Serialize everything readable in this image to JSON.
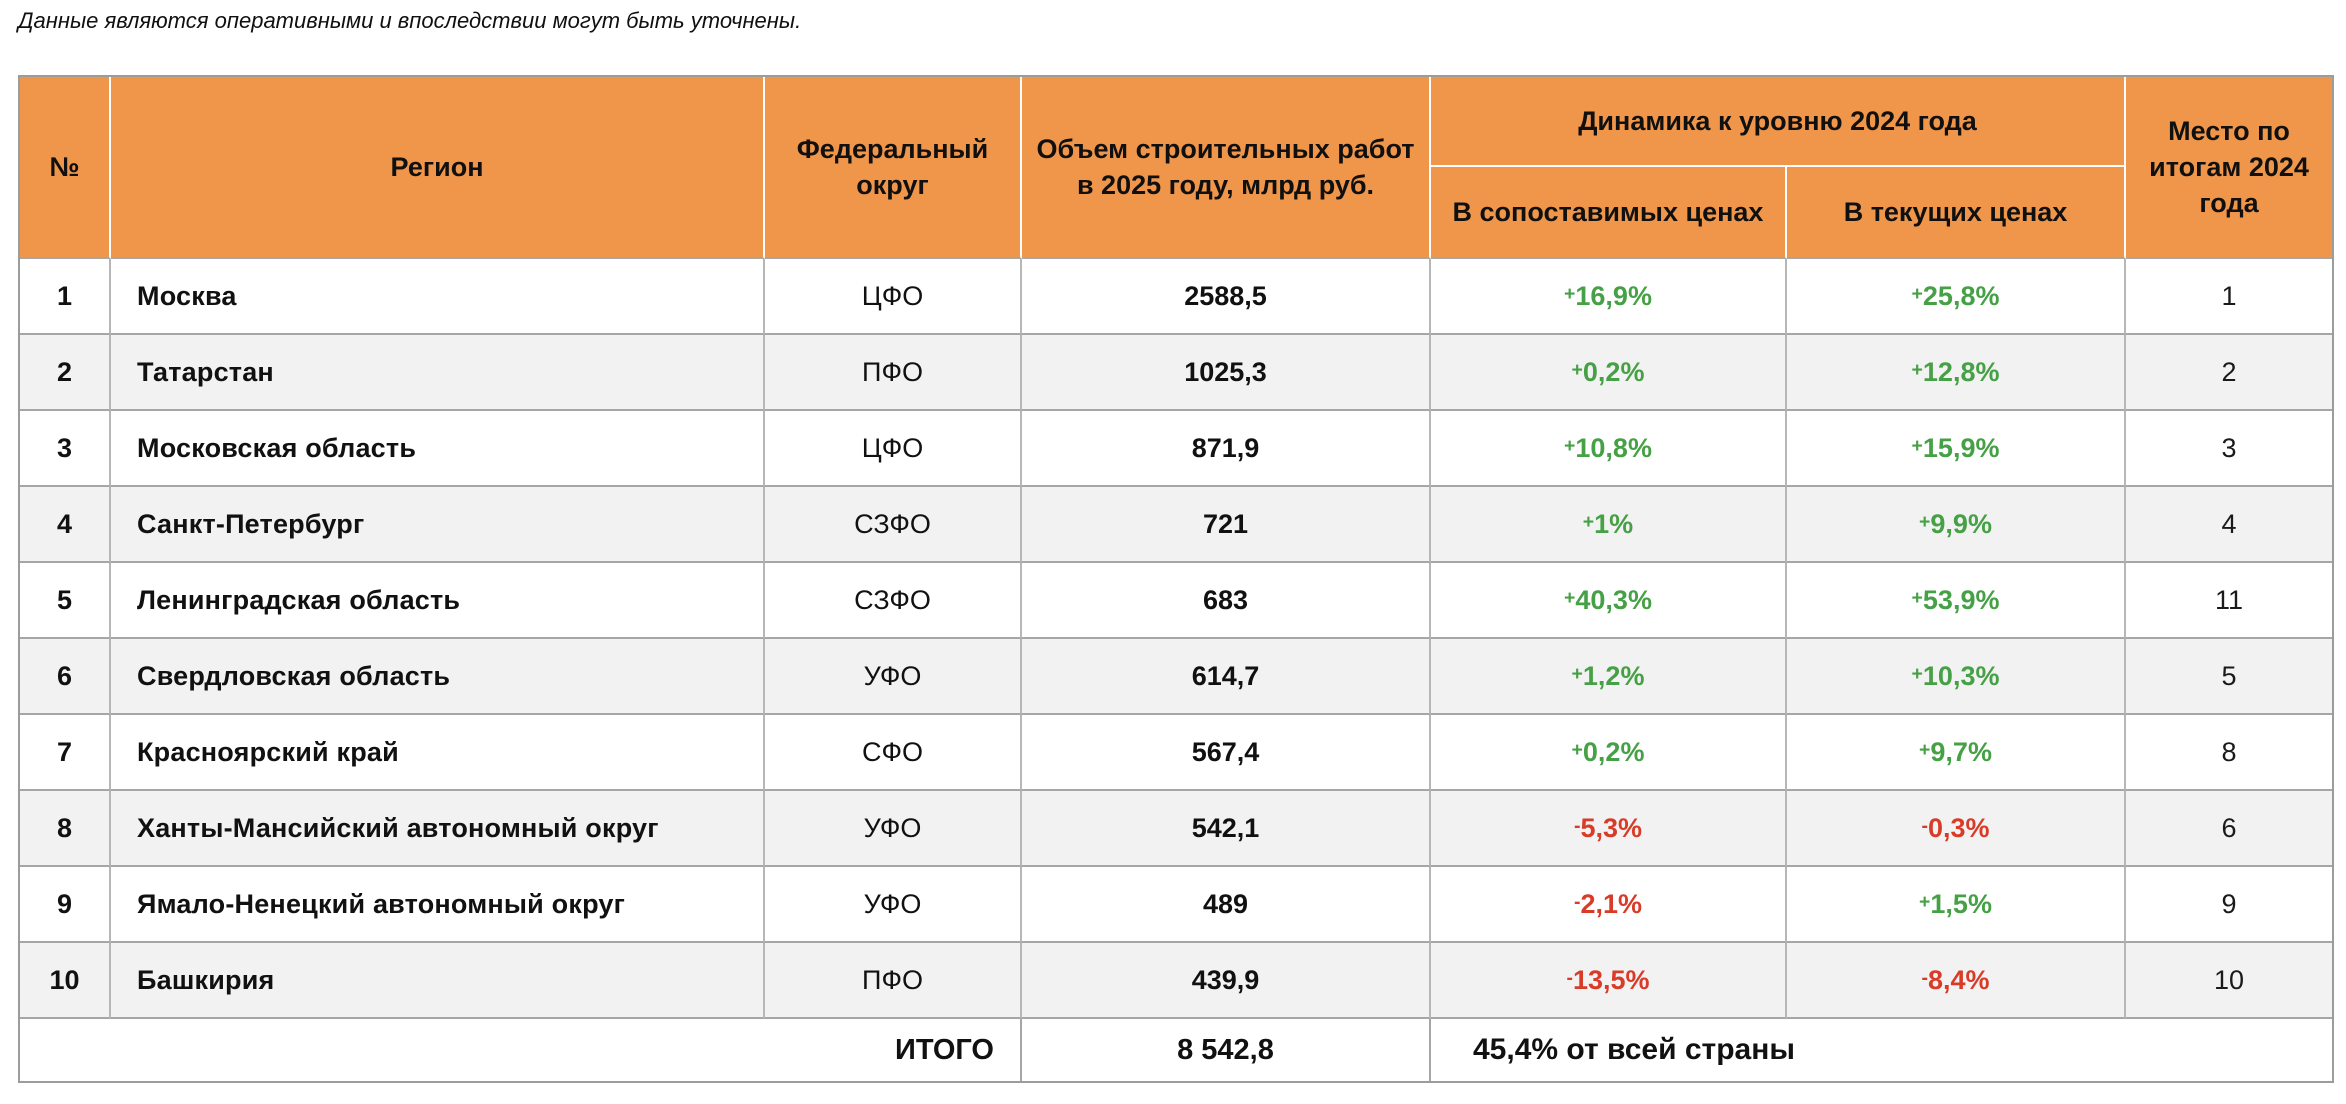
{
  "note": "Данные являются оперативными и впоследствии могут быть уточнены.",
  "colors": {
    "header_bg": "#F0964B",
    "positive": "#46A046",
    "negative": "#D83C28",
    "row_alt": "#F2F2F2",
    "border": "#A6A6A6"
  },
  "chart_data": {
    "type": "table",
    "headers": {
      "num": "№",
      "region": "Регион",
      "district": "Федеральный округ",
      "volume": "Объем строительных работ в 2025 году, млрд руб.",
      "dynamics": "Динамика к уровню 2024 года",
      "comparable": "В сопоставимых ценах",
      "current": "В текущих ценах",
      "place": "Место по итогам 2024 года"
    },
    "rows": [
      {
        "num": "1",
        "region": "Москва",
        "district": "ЦФО",
        "volume": "2588,5",
        "comparable": "+16,9%",
        "current": "+25,8%",
        "place": "1"
      },
      {
        "num": "2",
        "region": "Татарстан",
        "district": "ПФО",
        "volume": "1025,3",
        "comparable": "+0,2%",
        "current": "+12,8%",
        "place": "2"
      },
      {
        "num": "3",
        "region": "Московская область",
        "district": "ЦФО",
        "volume": "871,9",
        "comparable": "+10,8%",
        "current": "+15,9%",
        "place": "3"
      },
      {
        "num": "4",
        "region": "Санкт-Петербург",
        "district": "СЗФО",
        "volume": "721",
        "comparable": "+1%",
        "current": "+9,9%",
        "place": "4"
      },
      {
        "num": "5",
        "region": "Ленинградская область",
        "district": "СЗФО",
        "volume": "683",
        "comparable": "+40,3%",
        "current": "+53,9%",
        "place": "11"
      },
      {
        "num": "6",
        "region": "Свердловская область",
        "district": "УФО",
        "volume": "614,7",
        "comparable": "+1,2%",
        "current": "+10,3%",
        "place": "5"
      },
      {
        "num": "7",
        "region": "Красноярский край",
        "district": "СФО",
        "volume": "567,4",
        "comparable": "+0,2%",
        "current": "+9,7%",
        "place": "8"
      },
      {
        "num": "8",
        "region": "Ханты-Мансийский автономный округ",
        "district": "УФО",
        "volume": "542,1",
        "comparable": "-5,3%",
        "current": "-0,3%",
        "place": "6"
      },
      {
        "num": "9",
        "region": "Ямало-Ненецкий автономный округ",
        "district": "УФО",
        "volume": "489",
        "comparable": "-2,1%",
        "current": "+1,5%",
        "place": "9"
      },
      {
        "num": "10",
        "region": "Башкирия",
        "district": "ПФО",
        "volume": "439,9",
        "comparable": "-13,5%",
        "current": "-8,4%",
        "place": "10"
      }
    ],
    "footer": {
      "label": "ИТОГО",
      "total": "8 542,8",
      "share": "45,4% от всей страны"
    }
  }
}
